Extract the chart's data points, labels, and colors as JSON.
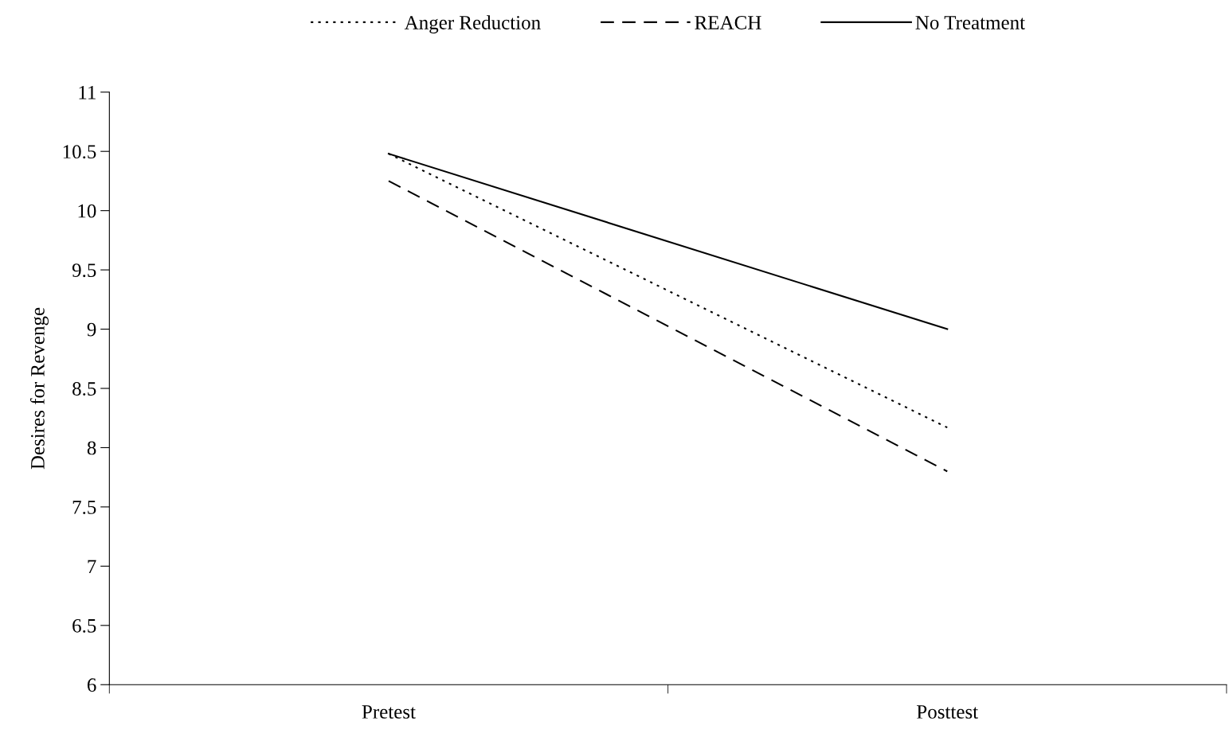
{
  "chart_data": {
    "type": "line",
    "ylabel": "Desires for Revenge",
    "categories": [
      "Pretest",
      "Posttest"
    ],
    "series": [
      {
        "name": "Anger Reduction",
        "color": "#000000",
        "line_style": "dotted",
        "values": [
          10.48,
          8.17
        ]
      },
      {
        "name": "REACH",
        "color": "#000000",
        "line_style": "dashed",
        "values": [
          10.25,
          7.8
        ]
      },
      {
        "name": "No Treatment",
        "color": "#000000",
        "line_style": "solid",
        "values": [
          10.48,
          9.0
        ]
      }
    ],
    "ylim": [
      6,
      11
    ],
    "yticks": [
      6,
      6.5,
      7,
      7.5,
      8,
      8.5,
      9,
      9.5,
      10,
      10.5,
      11
    ],
    "grid": false,
    "legend": "top",
    "marker": "none"
  }
}
